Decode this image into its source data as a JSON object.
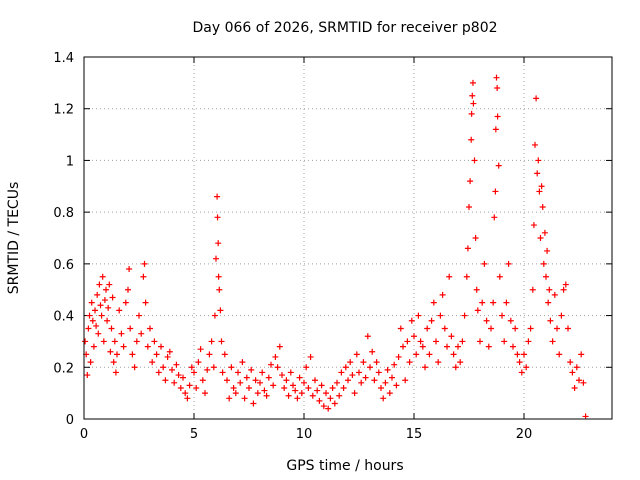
{
  "chart_data": {
    "type": "scatter",
    "title": "Day 066 of 2026, SRMTID for receiver p802",
    "xlabel": "GPS time / hours",
    "ylabel": "SRMTID / TECUs",
    "xlim": [
      0,
      24
    ],
    "ylim": [
      0,
      1.4
    ],
    "xticks": [
      0,
      5,
      10,
      15,
      20
    ],
    "xtick_labels": [
      "0",
      "5",
      "10",
      "15",
      "20"
    ],
    "yticks": [
      0,
      0.2,
      0.4,
      0.6,
      0.8,
      1.0,
      1.2,
      1.4
    ],
    "ytick_labels": [
      "0",
      "0.2",
      "0.4",
      "0.6",
      "0.8",
      "1",
      "1.2",
      "1.4"
    ],
    "grid": true,
    "marker": "+",
    "color": "#ff0000",
    "series": [
      {
        "name": "SRMTID",
        "points": [
          [
            0.05,
            0.3
          ],
          [
            0.1,
            0.25
          ],
          [
            0.15,
            0.17
          ],
          [
            0.2,
            0.35
          ],
          [
            0.25,
            0.4
          ],
          [
            0.3,
            0.22
          ],
          [
            0.35,
            0.45
          ],
          [
            0.4,
            0.38
          ],
          [
            0.45,
            0.28
          ],
          [
            0.5,
            0.42
          ],
          [
            0.55,
            0.36
          ],
          [
            0.6,
            0.48
          ],
          [
            0.65,
            0.33
          ],
          [
            0.7,
            0.52
          ],
          [
            0.75,
            0.44
          ],
          [
            0.8,
            0.4
          ],
          [
            0.85,
            0.55
          ],
          [
            0.9,
            0.3
          ],
          [
            0.95,
            0.46
          ],
          [
            1.0,
            0.5
          ],
          [
            1.05,
            0.38
          ],
          [
            1.1,
            0.43
          ],
          [
            1.15,
            0.52
          ],
          [
            1.2,
            0.26
          ],
          [
            1.25,
            0.35
          ],
          [
            1.3,
            0.47
          ],
          [
            1.35,
            0.22
          ],
          [
            1.4,
            0.3
          ],
          [
            1.45,
            0.18
          ],
          [
            1.5,
            0.25
          ],
          [
            1.6,
            0.42
          ],
          [
            1.7,
            0.33
          ],
          [
            1.8,
            0.28
          ],
          [
            1.9,
            0.45
          ],
          [
            2.0,
            0.5
          ],
          [
            2.05,
            0.58
          ],
          [
            2.1,
            0.35
          ],
          [
            2.2,
            0.25
          ],
          [
            2.3,
            0.2
          ],
          [
            2.4,
            0.3
          ],
          [
            2.5,
            0.4
          ],
          [
            2.6,
            0.33
          ],
          [
            2.7,
            0.55
          ],
          [
            2.75,
            0.6
          ],
          [
            2.8,
            0.45
          ],
          [
            2.9,
            0.28
          ],
          [
            3.0,
            0.35
          ],
          [
            3.1,
            0.22
          ],
          [
            3.2,
            0.3
          ],
          [
            3.3,
            0.25
          ],
          [
            3.4,
            0.18
          ],
          [
            3.5,
            0.28
          ],
          [
            3.6,
            0.2
          ],
          [
            3.7,
            0.15
          ],
          [
            3.8,
            0.24
          ],
          [
            3.9,
            0.26
          ],
          [
            4.0,
            0.19
          ],
          [
            4.1,
            0.14
          ],
          [
            4.2,
            0.21
          ],
          [
            4.3,
            0.17
          ],
          [
            4.4,
            0.12
          ],
          [
            4.5,
            0.16
          ],
          [
            4.6,
            0.1
          ],
          [
            4.7,
            0.08
          ],
          [
            4.8,
            0.13
          ],
          [
            4.9,
            0.2
          ],
          [
            5.0,
            0.18
          ],
          [
            5.1,
            0.12
          ],
          [
            5.2,
            0.22
          ],
          [
            5.3,
            0.27
          ],
          [
            5.4,
            0.15
          ],
          [
            5.5,
            0.1
          ],
          [
            5.6,
            0.19
          ],
          [
            5.7,
            0.25
          ],
          [
            5.8,
            0.3
          ],
          [
            5.9,
            0.2
          ],
          [
            5.95,
            0.4
          ],
          [
            6.0,
            0.62
          ],
          [
            6.05,
            0.86
          ],
          [
            6.07,
            0.78
          ],
          [
            6.1,
            0.68
          ],
          [
            6.12,
            0.55
          ],
          [
            6.15,
            0.5
          ],
          [
            6.2,
            0.42
          ],
          [
            6.25,
            0.3
          ],
          [
            6.3,
            0.18
          ],
          [
            6.4,
            0.25
          ],
          [
            6.5,
            0.15
          ],
          [
            6.6,
            0.08
          ],
          [
            6.7,
            0.2
          ],
          [
            6.8,
            0.12
          ],
          [
            6.9,
            0.1
          ],
          [
            7.0,
            0.18
          ],
          [
            7.1,
            0.14
          ],
          [
            7.2,
            0.22
          ],
          [
            7.3,
            0.08
          ],
          [
            7.4,
            0.16
          ],
          [
            7.5,
            0.12
          ],
          [
            7.6,
            0.19
          ],
          [
            7.7,
            0.06
          ],
          [
            7.8,
            0.15
          ],
          [
            7.9,
            0.1
          ],
          [
            8.0,
            0.14
          ],
          [
            8.1,
            0.18
          ],
          [
            8.2,
            0.11
          ],
          [
            8.3,
            0.09
          ],
          [
            8.4,
            0.16
          ],
          [
            8.5,
            0.21
          ],
          [
            8.6,
            0.13
          ],
          [
            8.7,
            0.24
          ],
          [
            8.8,
            0.2
          ],
          [
            8.9,
            0.28
          ],
          [
            9.0,
            0.17
          ],
          [
            9.1,
            0.12
          ],
          [
            9.2,
            0.15
          ],
          [
            9.3,
            0.09
          ],
          [
            9.4,
            0.18
          ],
          [
            9.5,
            0.13
          ],
          [
            9.6,
            0.11
          ],
          [
            9.7,
            0.08
          ],
          [
            9.8,
            0.16
          ],
          [
            9.9,
            0.1
          ],
          [
            10.0,
            0.14
          ],
          [
            10.1,
            0.2
          ],
          [
            10.2,
            0.12
          ],
          [
            10.3,
            0.24
          ],
          [
            10.4,
            0.09
          ],
          [
            10.5,
            0.15
          ],
          [
            10.6,
            0.11
          ],
          [
            10.7,
            0.07
          ],
          [
            10.8,
            0.13
          ],
          [
            10.9,
            0.05
          ],
          [
            11.0,
            0.1
          ],
          [
            11.1,
            0.04
          ],
          [
            11.2,
            0.08
          ],
          [
            11.3,
            0.12
          ],
          [
            11.4,
            0.06
          ],
          [
            11.5,
            0.14
          ],
          [
            11.6,
            0.09
          ],
          [
            11.7,
            0.18
          ],
          [
            11.8,
            0.12
          ],
          [
            11.9,
            0.2
          ],
          [
            12.0,
            0.15
          ],
          [
            12.1,
            0.22
          ],
          [
            12.2,
            0.17
          ],
          [
            12.3,
            0.1
          ],
          [
            12.4,
            0.25
          ],
          [
            12.5,
            0.18
          ],
          [
            12.6,
            0.14
          ],
          [
            12.7,
            0.22
          ],
          [
            12.8,
            0.16
          ],
          [
            12.9,
            0.32
          ],
          [
            13.0,
            0.2
          ],
          [
            13.1,
            0.26
          ],
          [
            13.2,
            0.15
          ],
          [
            13.3,
            0.22
          ],
          [
            13.4,
            0.18
          ],
          [
            13.5,
            0.12
          ],
          [
            13.6,
            0.08
          ],
          [
            13.7,
            0.14
          ],
          [
            13.8,
            0.19
          ],
          [
            13.9,
            0.1
          ],
          [
            14.0,
            0.16
          ],
          [
            14.1,
            0.21
          ],
          [
            14.2,
            0.13
          ],
          [
            14.3,
            0.24
          ],
          [
            14.4,
            0.35
          ],
          [
            14.5,
            0.28
          ],
          [
            14.6,
            0.15
          ],
          [
            14.7,
            0.3
          ],
          [
            14.8,
            0.22
          ],
          [
            14.9,
            0.38
          ],
          [
            15.0,
            0.32
          ],
          [
            15.1,
            0.25
          ],
          [
            15.2,
            0.4
          ],
          [
            15.3,
            0.3
          ],
          [
            15.4,
            0.28
          ],
          [
            15.5,
            0.2
          ],
          [
            15.6,
            0.35
          ],
          [
            15.7,
            0.25
          ],
          [
            15.8,
            0.38
          ],
          [
            15.9,
            0.45
          ],
          [
            16.0,
            0.3
          ],
          [
            16.1,
            0.22
          ],
          [
            16.2,
            0.4
          ],
          [
            16.3,
            0.48
          ],
          [
            16.4,
            0.35
          ],
          [
            16.5,
            0.28
          ],
          [
            16.6,
            0.55
          ],
          [
            16.7,
            0.32
          ],
          [
            16.8,
            0.25
          ],
          [
            16.9,
            0.2
          ],
          [
            17.0,
            0.28
          ],
          [
            17.1,
            0.22
          ],
          [
            17.2,
            0.3
          ],
          [
            17.3,
            0.4
          ],
          [
            17.4,
            0.55
          ],
          [
            17.45,
            0.66
          ],
          [
            17.5,
            0.82
          ],
          [
            17.55,
            0.92
          ],
          [
            17.6,
            1.08
          ],
          [
            17.62,
            1.18
          ],
          [
            17.65,
            1.25
          ],
          [
            17.68,
            1.3
          ],
          [
            17.7,
            1.22
          ],
          [
            17.75,
            1.0
          ],
          [
            17.8,
            0.7
          ],
          [
            17.85,
            0.5
          ],
          [
            17.9,
            0.42
          ],
          [
            18.0,
            0.3
          ],
          [
            18.1,
            0.45
          ],
          [
            18.2,
            0.6
          ],
          [
            18.3,
            0.38
          ],
          [
            18.4,
            0.28
          ],
          [
            18.5,
            0.35
          ],
          [
            18.6,
            0.45
          ],
          [
            18.65,
            0.78
          ],
          [
            18.7,
            0.88
          ],
          [
            18.72,
            1.12
          ],
          [
            18.75,
            1.32
          ],
          [
            18.78,
            1.28
          ],
          [
            18.8,
            1.17
          ],
          [
            18.85,
            0.98
          ],
          [
            18.9,
            0.55
          ],
          [
            19.0,
            0.4
          ],
          [
            19.1,
            0.3
          ],
          [
            19.2,
            0.45
          ],
          [
            19.3,
            0.6
          ],
          [
            19.4,
            0.38
          ],
          [
            19.5,
            0.28
          ],
          [
            19.6,
            0.35
          ],
          [
            19.7,
            0.25
          ],
          [
            19.8,
            0.22
          ],
          [
            19.9,
            0.18
          ],
          [
            20.0,
            0.25
          ],
          [
            20.1,
            0.2
          ],
          [
            20.2,
            0.3
          ],
          [
            20.3,
            0.35
          ],
          [
            20.4,
            0.5
          ],
          [
            20.45,
            0.75
          ],
          [
            20.5,
            1.06
          ],
          [
            20.55,
            1.24
          ],
          [
            20.6,
            0.95
          ],
          [
            20.65,
            1.0
          ],
          [
            20.7,
            0.88
          ],
          [
            20.75,
            0.7
          ],
          [
            20.8,
            0.9
          ],
          [
            20.85,
            0.82
          ],
          [
            20.9,
            0.6
          ],
          [
            20.95,
            0.72
          ],
          [
            21.0,
            0.55
          ],
          [
            21.05,
            0.65
          ],
          [
            21.1,
            0.45
          ],
          [
            21.15,
            0.5
          ],
          [
            21.2,
            0.38
          ],
          [
            21.3,
            0.3
          ],
          [
            21.4,
            0.48
          ],
          [
            21.5,
            0.35
          ],
          [
            21.6,
            0.25
          ],
          [
            21.7,
            0.4
          ],
          [
            21.8,
            0.5
          ],
          [
            21.9,
            0.52
          ],
          [
            22.0,
            0.35
          ],
          [
            22.1,
            0.22
          ],
          [
            22.2,
            0.18
          ],
          [
            22.3,
            0.12
          ],
          [
            22.4,
            0.2
          ],
          [
            22.5,
            0.15
          ],
          [
            22.6,
            0.25
          ],
          [
            22.7,
            0.14
          ],
          [
            22.8,
            0.01
          ]
        ]
      }
    ]
  }
}
